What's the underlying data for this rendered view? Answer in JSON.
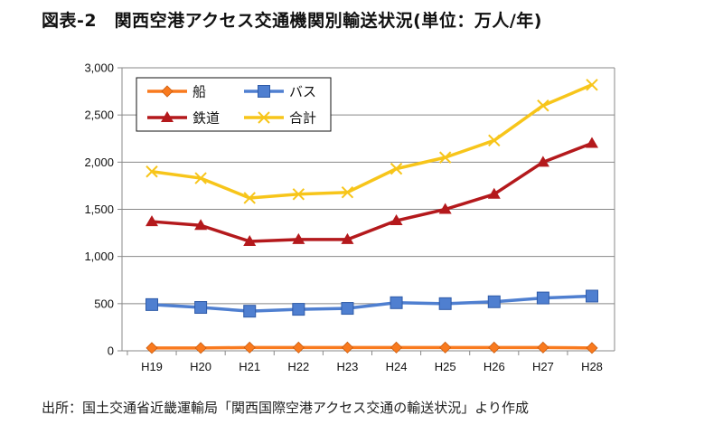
{
  "title": "図表-2　関西空港アクセス交通機関別輸送状況(単位：万人/年)",
  "source": "出所：国土交通省近畿運輸局「関西国際空港アクセス交通の輸送状況」より作成",
  "colors": {
    "ship": "#f97a1e",
    "bus": "#4f7fd0",
    "rail": "#b4191c",
    "total": "#f7c51a",
    "grid": "#888888",
    "axis": "#888888"
  },
  "chart_data": {
    "type": "line",
    "title": "図表-2　関西空港アクセス交通機関別輸送状況(単位：万人/年)",
    "categories": [
      "H19",
      "H20",
      "H21",
      "H22",
      "H23",
      "H24",
      "H25",
      "H26",
      "H27",
      "H28"
    ],
    "series": [
      {
        "name": "船",
        "key": "ship",
        "marker": "diamond",
        "values": [
          30,
          30,
          35,
          35,
          35,
          35,
          35,
          35,
          35,
          30
        ]
      },
      {
        "name": "バス",
        "key": "bus",
        "marker": "square",
        "values": [
          490,
          460,
          420,
          440,
          450,
          510,
          500,
          520,
          560,
          580
        ]
      },
      {
        "name": "鉄道",
        "key": "rail",
        "marker": "triangle",
        "values": [
          1370,
          1330,
          1160,
          1180,
          1180,
          1380,
          1500,
          1660,
          2000,
          2200
        ]
      },
      {
        "name": "合計",
        "key": "total",
        "marker": "x",
        "values": [
          1900,
          1830,
          1620,
          1660,
          1680,
          1930,
          2050,
          2230,
          2600,
          2820
        ]
      }
    ],
    "yticks": [
      "0",
      "500",
      "1,000",
      "1,500",
      "2,000",
      "2,500",
      "3,000"
    ],
    "ylim": [
      0,
      3000
    ],
    "grid": true,
    "legend": "top-left"
  }
}
